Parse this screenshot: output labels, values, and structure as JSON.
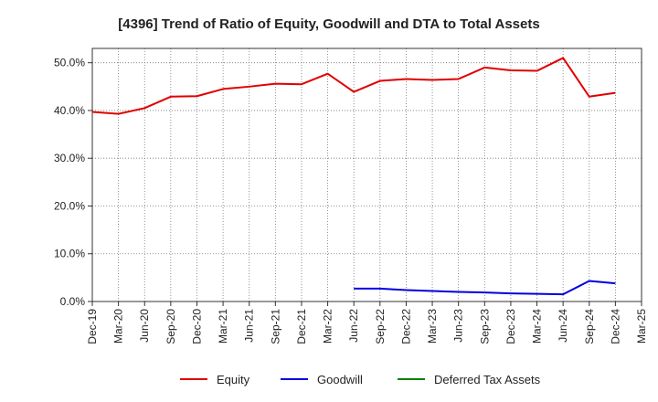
{
  "chart_data": {
    "type": "line",
    "title": "[4396]  Trend of Ratio of Equity, Goodwill and DTA to Total Assets",
    "xlabel": "",
    "ylabel": "",
    "categories": [
      "Dec-19",
      "Mar-20",
      "Jun-20",
      "Sep-20",
      "Dec-20",
      "Mar-21",
      "Jun-21",
      "Sep-21",
      "Dec-21",
      "Mar-22",
      "Jun-22",
      "Sep-22",
      "Dec-22",
      "Mar-23",
      "Jun-23",
      "Sep-23",
      "Dec-23",
      "Mar-24",
      "Jun-24",
      "Sep-24",
      "Dec-24",
      "Mar-25"
    ],
    "ylim": [
      0,
      53
    ],
    "yticks": [
      0,
      10,
      20,
      30,
      40,
      50
    ],
    "ytick_labels": [
      "0.0%",
      "10.0%",
      "20.0%",
      "30.0%",
      "40.0%",
      "50.0%"
    ],
    "grid": true,
    "legend_position": "bottom",
    "series": [
      {
        "name": "Equity",
        "color": "#e00000",
        "values": [
          39.7,
          39.3,
          40.5,
          42.9,
          43.0,
          44.5,
          45.0,
          45.6,
          45.5,
          47.7,
          43.9,
          46.2,
          46.6,
          46.4,
          46.6,
          49.0,
          48.4,
          48.3,
          51.0,
          42.9,
          43.7,
          null
        ]
      },
      {
        "name": "Goodwill",
        "color": "#0000e0",
        "values": [
          null,
          null,
          null,
          null,
          null,
          null,
          null,
          null,
          null,
          null,
          2.7,
          2.7,
          2.4,
          2.2,
          2.0,
          1.9,
          1.7,
          1.6,
          1.5,
          4.3,
          3.8,
          null
        ]
      },
      {
        "name": "Deferred Tax Assets",
        "color": "#008000",
        "values": [
          null,
          null,
          null,
          null,
          null,
          null,
          null,
          null,
          null,
          null,
          null,
          null,
          null,
          null,
          null,
          null,
          null,
          null,
          null,
          null,
          null,
          null
        ]
      }
    ]
  }
}
